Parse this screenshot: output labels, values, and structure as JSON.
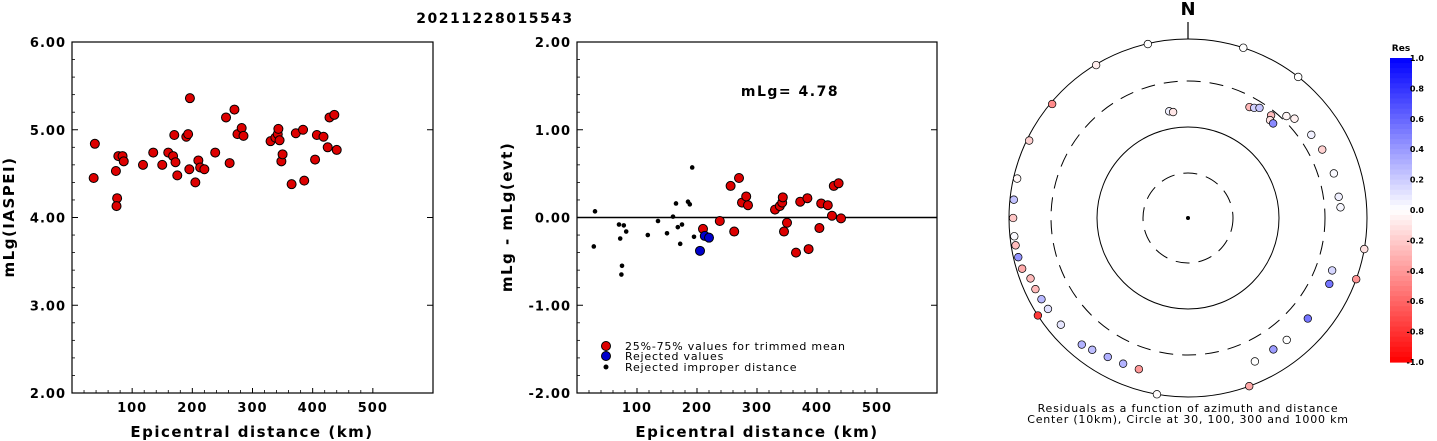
{
  "title": "20211228015543",
  "colors": {
    "trimmed": "#dd0000",
    "rejected": "#0000cc",
    "improper": "#000000"
  },
  "chart_data": [
    {
      "type": "scatter",
      "xlabel": "Epicentral distance (km)",
      "ylabel": "mLg(IASPEI)",
      "xlim": [
        0,
        600
      ],
      "ylim": [
        2.0,
        6.0
      ],
      "xticks": [
        "100",
        "200",
        "300",
        "400",
        "500"
      ],
      "yticks": [
        "2.00",
        "3.00",
        "4.00",
        "5.00",
        "6.00"
      ],
      "points": [
        [
          38,
          4.84
        ],
        [
          36,
          4.45
        ],
        [
          73,
          4.53
        ],
        [
          77,
          4.7
        ],
        [
          84,
          4.7
        ],
        [
          86,
          4.64
        ],
        [
          75,
          4.22
        ],
        [
          74,
          4.13
        ],
        [
          118,
          4.6
        ],
        [
          135,
          4.74
        ],
        [
          150,
          4.6
        ],
        [
          160,
          4.74
        ],
        [
          170,
          4.94
        ],
        [
          168,
          4.7
        ],
        [
          172,
          4.63
        ],
        [
          175,
          4.48
        ],
        [
          190,
          4.92
        ],
        [
          193,
          4.95
        ],
        [
          196,
          5.36
        ],
        [
          195,
          4.55
        ],
        [
          205,
          4.4
        ],
        [
          210,
          4.65
        ],
        [
          213,
          4.57
        ],
        [
          220,
          4.55
        ],
        [
          238,
          4.74
        ],
        [
          256,
          5.14
        ],
        [
          262,
          4.62
        ],
        [
          270,
          5.23
        ],
        [
          275,
          4.95
        ],
        [
          282,
          5.02
        ],
        [
          285,
          4.93
        ],
        [
          330,
          4.87
        ],
        [
          338,
          4.91
        ],
        [
          342,
          4.95
        ],
        [
          343,
          5.01
        ],
        [
          345,
          4.88
        ],
        [
          348,
          4.64
        ],
        [
          350,
          4.72
        ],
        [
          365,
          4.38
        ],
        [
          372,
          4.96
        ],
        [
          384,
          5.0
        ],
        [
          386,
          4.42
        ],
        [
          404,
          4.66
        ],
        [
          407,
          4.94
        ],
        [
          418,
          4.92
        ],
        [
          425,
          4.8
        ],
        [
          428,
          5.14
        ],
        [
          436,
          5.17
        ],
        [
          440,
          4.77
        ]
      ]
    },
    {
      "type": "scatter",
      "xlabel": "Epicentral distance (km)",
      "ylabel": "mLg - mLg(evt)",
      "annotation": "mLg= 4.78",
      "xlim": [
        0,
        600
      ],
      "ylim": [
        -2.0,
        2.0
      ],
      "xticks": [
        "100",
        "200",
        "300",
        "400",
        "500"
      ],
      "yticks": [
        "-2.00",
        "-1.00",
        "0.00",
        "1.00",
        "2.00"
      ],
      "reference_line": 0.0,
      "legend": [
        "25%-75% values for trimmed mean",
        "Rejected values",
        "Rejected improper distance"
      ],
      "series": [
        {
          "name": "25%-75% values for trimmed mean",
          "points": [
            [
              210,
              -0.13
            ],
            [
              238,
              -0.04
            ],
            [
              256,
              0.36
            ],
            [
              262,
              -0.16
            ],
            [
              270,
              0.45
            ],
            [
              275,
              0.17
            ],
            [
              282,
              0.24
            ],
            [
              285,
              0.14
            ],
            [
              330,
              0.09
            ],
            [
              338,
              0.13
            ],
            [
              342,
              0.17
            ],
            [
              343,
              0.23
            ],
            [
              345,
              -0.16
            ],
            [
              350,
              -0.06
            ],
            [
              365,
              -0.4
            ],
            [
              372,
              0.18
            ],
            [
              384,
              0.22
            ],
            [
              386,
              -0.36
            ],
            [
              404,
              -0.12
            ],
            [
              407,
              0.16
            ],
            [
              418,
              0.14
            ],
            [
              425,
              0.02
            ],
            [
              428,
              0.36
            ],
            [
              436,
              0.39
            ],
            [
              440,
              -0.01
            ]
          ]
        },
        {
          "name": "Rejected values",
          "points": [
            [
              205,
              -0.38
            ],
            [
              213,
              -0.21
            ],
            [
              220,
              -0.23
            ]
          ]
        },
        {
          "name": "Rejected improper distance",
          "points": [
            [
              30,
              0.07
            ],
            [
              28,
              -0.33
            ],
            [
              70,
              -0.08
            ],
            [
              72,
              -0.24
            ],
            [
              78,
              -0.09
            ],
            [
              82,
              -0.16
            ],
            [
              75,
              -0.55
            ],
            [
              74,
              -0.65
            ],
            [
              118,
              -0.2
            ],
            [
              135,
              -0.04
            ],
            [
              150,
              -0.18
            ],
            [
              160,
              0.01
            ],
            [
              165,
              0.16
            ],
            [
              168,
              -0.11
            ],
            [
              172,
              -0.3
            ],
            [
              175,
              -0.08
            ],
            [
              185,
              0.18
            ],
            [
              188,
              0.15
            ],
            [
              192,
              0.57
            ],
            [
              195,
              -0.22
            ]
          ]
        }
      ]
    },
    {
      "type": "scatter",
      "title": "N",
      "caption_line1": "Residuals as a function of azimuth and distance",
      "caption_line2": "Center (10km), Circle at 30, 100, 300 and 1000 km",
      "colorbar_label": "Res",
      "colorbar_ticks": [
        "1.0",
        "0.8",
        "0.6",
        "0.4",
        "0.2",
        "0.0",
        "-0.2",
        "-0.4",
        "-0.6",
        "-0.8",
        "-1.0"
      ],
      "polar_points": [
        [
          350,
          0.06
        ],
        [
          352,
          -0.1
        ],
        [
          29,
          -0.28
        ],
        [
          31,
          0.18
        ],
        [
          33,
          0.22
        ],
        [
          39,
          -0.26
        ],
        [
          40,
          -0.11
        ],
        [
          42,
          0.46
        ],
        [
          44,
          -0.04
        ],
        [
          47,
          -0.06
        ],
        [
          56,
          0.06
        ],
        [
          63,
          -0.18
        ],
        [
          73,
          0.02
        ],
        [
          82,
          0.06
        ],
        [
          86,
          0.03
        ],
        [
          110,
          0.16
        ],
        [
          115,
          0.54
        ],
        [
          130,
          0.54
        ],
        [
          141,
          0.0
        ],
        [
          147,
          0.39
        ],
        [
          155,
          0.0
        ],
        [
          198,
          -0.4
        ],
        [
          204,
          0.3
        ],
        [
          210,
          0.31
        ],
        [
          216,
          0.26
        ],
        [
          220,
          0.3
        ],
        [
          230,
          0.1
        ],
        [
          237,
          0.12
        ],
        [
          241,
          0.28
        ],
        [
          245,
          -0.27
        ],
        [
          249,
          -0.27
        ],
        [
          253,
          -0.33
        ],
        [
          257,
          0.42
        ],
        [
          261,
          -0.26
        ],
        [
          264,
          0.02
        ],
        [
          270,
          -0.22
        ],
        [
          276,
          0.24
        ],
        [
          283,
          -0.03
        ],
        [
          296,
          -0.18
        ],
        [
          310,
          -0.46
        ],
        [
          329,
          -0.07
        ],
        [
          347,
          0.0
        ],
        [
          18,
          0.0
        ],
        [
          110,
          -0.42
        ],
        [
          160,
          -0.34
        ],
        [
          237,
          -0.78
        ],
        [
          190,
          -0.01
        ],
        [
          38,
          0.0
        ],
        [
          100,
          -0.12
        ]
      ]
    }
  ]
}
